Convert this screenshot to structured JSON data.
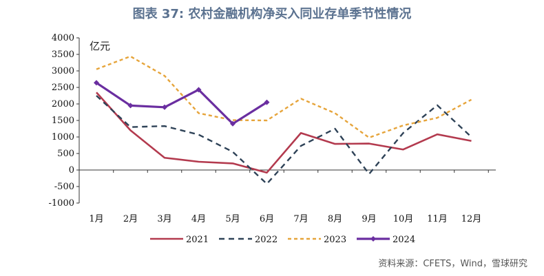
{
  "title": "图表 37: 农村金融机构净买入同业存单季节性情况",
  "unit_label": "亿元",
  "source": "资料来源：CFETS，Wind，雪球研究",
  "colors": {
    "2021": "#b33a4e",
    "2022": "#2e4257",
    "2023": "#e6a43a",
    "2024": "#6a2ea0",
    "axis": "#333333",
    "title": "#5b7290"
  },
  "chart_data": {
    "type": "line",
    "title": "图表 37: 农村金融机构净买入同业存单季节性情况",
    "ylabel": "亿元",
    "xlabel": "",
    "ylim": [
      -1000,
      4000
    ],
    "yticks": [
      -1000,
      -500,
      0,
      500,
      1000,
      1500,
      2000,
      2500,
      3000,
      3500,
      4000
    ],
    "categories": [
      "1月",
      "2月",
      "3月",
      "4月",
      "5月",
      "6月",
      "7月",
      "8月",
      "9月",
      "10月",
      "11月",
      "12月"
    ],
    "grid": false,
    "legend_position": "bottom",
    "series": [
      {
        "name": "2021",
        "style": "solid",
        "values": [
          2350,
          1200,
          370,
          250,
          200,
          -80,
          1120,
          790,
          800,
          620,
          1080,
          880
        ]
      },
      {
        "name": "2022",
        "style": "dash",
        "values": [
          2250,
          1300,
          1330,
          1070,
          550,
          -420,
          730,
          1250,
          -120,
          1120,
          1960,
          1000
        ]
      },
      {
        "name": "2023",
        "style": "dot",
        "values": [
          3050,
          3440,
          2850,
          1720,
          1510,
          1500,
          2160,
          1720,
          980,
          1350,
          1580,
          2130
        ]
      },
      {
        "name": "2024",
        "style": "solid-marker",
        "values": [
          2640,
          1950,
          1900,
          2430,
          1400,
          2050,
          null,
          null,
          null,
          null,
          null,
          null
        ]
      }
    ]
  }
}
